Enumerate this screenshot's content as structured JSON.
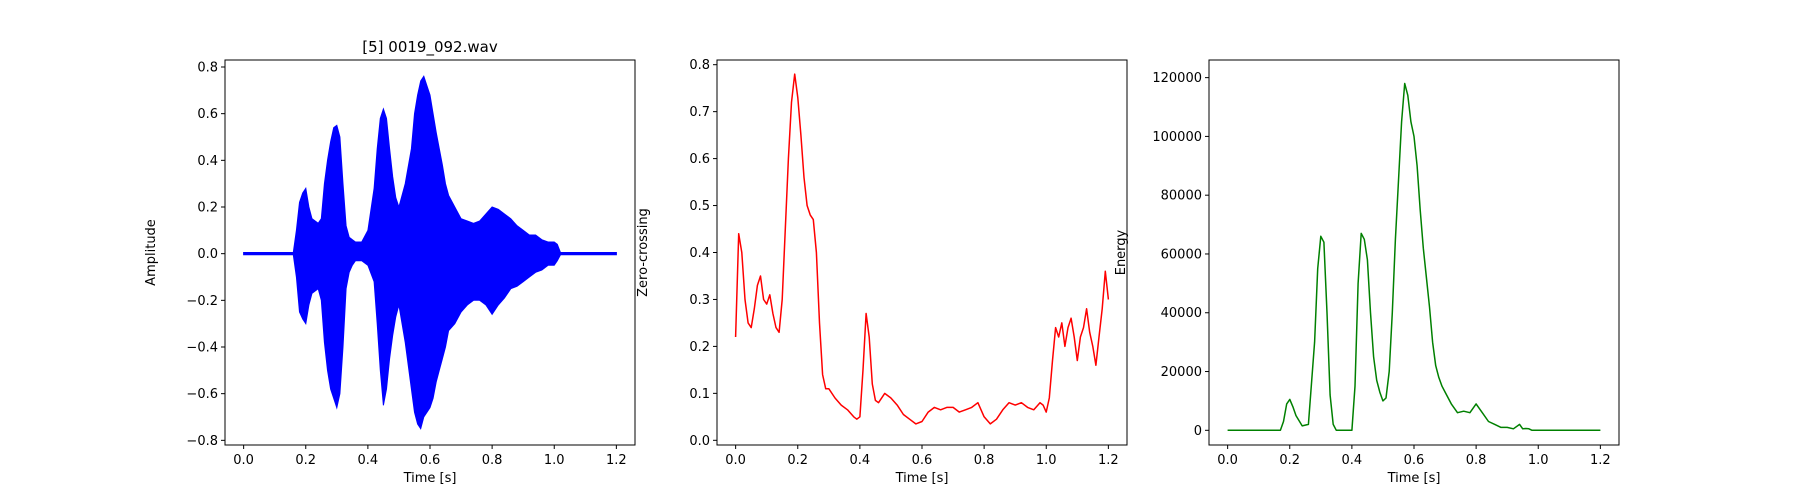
{
  "chart_data": [
    {
      "type": "line",
      "title": "[5] 0019_092.wav",
      "xlabel": "Time [s]",
      "ylabel": "Amplitude",
      "xlim": [
        -0.06,
        1.26
      ],
      "ylim": [
        -0.82,
        0.83
      ],
      "xticks": [
        0.0,
        0.2,
        0.4,
        0.6,
        0.8,
        1.0,
        1.2
      ],
      "xtick_labels": [
        "0.0",
        "0.2",
        "0.4",
        "0.6",
        "0.8",
        "1.0",
        "1.2"
      ],
      "yticks": [
        -0.8,
        -0.6,
        -0.4,
        -0.2,
        0.0,
        0.2,
        0.4,
        0.6,
        0.8
      ],
      "ytick_labels": [
        "−0.8",
        "−0.6",
        "−0.4",
        "−0.2",
        "0.0",
        "0.2",
        "0.4",
        "0.6",
        "0.8"
      ],
      "grid": false,
      "color": "#0000ff",
      "series": [
        {
          "style": "waveform-envelope",
          "x": [
            0.0,
            0.16,
            0.17,
            0.18,
            0.19,
            0.2,
            0.21,
            0.22,
            0.24,
            0.25,
            0.26,
            0.27,
            0.28,
            0.29,
            0.3,
            0.31,
            0.32,
            0.33,
            0.34,
            0.35,
            0.36,
            0.38,
            0.4,
            0.42,
            0.43,
            0.44,
            0.45,
            0.46,
            0.47,
            0.48,
            0.49,
            0.5,
            0.52,
            0.54,
            0.55,
            0.56,
            0.57,
            0.58,
            0.59,
            0.6,
            0.61,
            0.62,
            0.63,
            0.64,
            0.65,
            0.66,
            0.68,
            0.7,
            0.72,
            0.74,
            0.76,
            0.78,
            0.8,
            0.82,
            0.84,
            0.86,
            0.88,
            0.9,
            0.92,
            0.94,
            0.96,
            0.98,
            1.0,
            1.01,
            1.02,
            1.2
          ],
          "upper": [
            0.005,
            0.005,
            0.1,
            0.22,
            0.26,
            0.28,
            0.2,
            0.15,
            0.13,
            0.15,
            0.3,
            0.4,
            0.48,
            0.54,
            0.55,
            0.5,
            0.3,
            0.12,
            0.07,
            0.06,
            0.05,
            0.05,
            0.1,
            0.28,
            0.45,
            0.58,
            0.62,
            0.58,
            0.45,
            0.33,
            0.24,
            0.2,
            0.3,
            0.45,
            0.6,
            0.68,
            0.74,
            0.76,
            0.72,
            0.68,
            0.6,
            0.52,
            0.45,
            0.38,
            0.3,
            0.25,
            0.2,
            0.15,
            0.14,
            0.13,
            0.14,
            0.17,
            0.2,
            0.19,
            0.17,
            0.15,
            0.12,
            0.1,
            0.08,
            0.08,
            0.06,
            0.05,
            0.05,
            0.04,
            0.005,
            0.005
          ],
          "lower": [
            -0.005,
            -0.005,
            -0.1,
            -0.25,
            -0.28,
            -0.3,
            -0.22,
            -0.17,
            -0.15,
            -0.2,
            -0.38,
            -0.5,
            -0.58,
            -0.62,
            -0.66,
            -0.6,
            -0.4,
            -0.15,
            -0.08,
            -0.05,
            -0.03,
            -0.03,
            -0.05,
            -0.12,
            -0.3,
            -0.5,
            -0.65,
            -0.58,
            -0.45,
            -0.35,
            -0.27,
            -0.22,
            -0.38,
            -0.58,
            -0.68,
            -0.73,
            -0.75,
            -0.7,
            -0.68,
            -0.66,
            -0.62,
            -0.55,
            -0.5,
            -0.45,
            -0.4,
            -0.33,
            -0.3,
            -0.25,
            -0.22,
            -0.2,
            -0.2,
            -0.22,
            -0.26,
            -0.22,
            -0.19,
            -0.15,
            -0.14,
            -0.12,
            -0.1,
            -0.08,
            -0.07,
            -0.05,
            -0.05,
            -0.03,
            -0.005,
            -0.005
          ]
        }
      ]
    },
    {
      "type": "line",
      "title": "",
      "xlabel": "Time [s]",
      "ylabel": "Zero-crossing",
      "xlim": [
        -0.06,
        1.26
      ],
      "ylim": [
        -0.01,
        0.81
      ],
      "xticks": [
        0.0,
        0.2,
        0.4,
        0.6,
        0.8,
        1.0,
        1.2
      ],
      "xtick_labels": [
        "0.0",
        "0.2",
        "0.4",
        "0.6",
        "0.8",
        "1.0",
        "1.2"
      ],
      "yticks": [
        0.0,
        0.1,
        0.2,
        0.3,
        0.4,
        0.5,
        0.6,
        0.7,
        0.8
      ],
      "ytick_labels": [
        "0.0",
        "0.1",
        "0.2",
        "0.3",
        "0.4",
        "0.5",
        "0.6",
        "0.7",
        "0.8"
      ],
      "grid": false,
      "color": "#ff0000",
      "series": [
        {
          "x": [
            0.0,
            0.01,
            0.02,
            0.03,
            0.04,
            0.05,
            0.06,
            0.07,
            0.08,
            0.09,
            0.1,
            0.11,
            0.12,
            0.13,
            0.14,
            0.15,
            0.16,
            0.17,
            0.18,
            0.19,
            0.2,
            0.21,
            0.22,
            0.23,
            0.24,
            0.25,
            0.26,
            0.27,
            0.28,
            0.29,
            0.3,
            0.32,
            0.34,
            0.36,
            0.38,
            0.39,
            0.4,
            0.41,
            0.42,
            0.43,
            0.44,
            0.45,
            0.46,
            0.48,
            0.5,
            0.52,
            0.54,
            0.56,
            0.58,
            0.6,
            0.62,
            0.64,
            0.66,
            0.68,
            0.7,
            0.72,
            0.74,
            0.76,
            0.78,
            0.8,
            0.82,
            0.84,
            0.86,
            0.88,
            0.9,
            0.92,
            0.94,
            0.96,
            0.98,
            0.99,
            1.0,
            1.01,
            1.02,
            1.03,
            1.04,
            1.05,
            1.06,
            1.07,
            1.08,
            1.09,
            1.1,
            1.11,
            1.12,
            1.13,
            1.14,
            1.15,
            1.16,
            1.17,
            1.18,
            1.19,
            1.2
          ],
          "y": [
            0.22,
            0.44,
            0.4,
            0.3,
            0.25,
            0.24,
            0.28,
            0.33,
            0.35,
            0.3,
            0.29,
            0.31,
            0.27,
            0.24,
            0.23,
            0.3,
            0.45,
            0.6,
            0.72,
            0.78,
            0.73,
            0.65,
            0.56,
            0.5,
            0.48,
            0.47,
            0.4,
            0.25,
            0.14,
            0.11,
            0.11,
            0.09,
            0.075,
            0.065,
            0.05,
            0.045,
            0.05,
            0.15,
            0.27,
            0.22,
            0.12,
            0.085,
            0.08,
            0.1,
            0.09,
            0.075,
            0.055,
            0.045,
            0.035,
            0.04,
            0.06,
            0.07,
            0.065,
            0.07,
            0.07,
            0.06,
            0.065,
            0.07,
            0.08,
            0.05,
            0.035,
            0.045,
            0.065,
            0.08,
            0.075,
            0.08,
            0.07,
            0.065,
            0.08,
            0.075,
            0.06,
            0.09,
            0.17,
            0.24,
            0.22,
            0.25,
            0.2,
            0.24,
            0.26,
            0.22,
            0.17,
            0.22,
            0.24,
            0.28,
            0.23,
            0.2,
            0.16,
            0.22,
            0.28,
            0.36,
            0.3
          ]
        }
      ]
    },
    {
      "type": "line",
      "title": "",
      "xlabel": "Time [s]",
      "ylabel": "Energy",
      "xlim": [
        -0.06,
        1.26
      ],
      "ylim": [
        -5000,
        126000
      ],
      "xticks": [
        0.0,
        0.2,
        0.4,
        0.6,
        0.8,
        1.0,
        1.2
      ],
      "xtick_labels": [
        "0.0",
        "0.2",
        "0.4",
        "0.6",
        "0.8",
        "1.0",
        "1.2"
      ],
      "yticks": [
        0,
        20000,
        40000,
        60000,
        80000,
        100000,
        120000
      ],
      "ytick_labels": [
        "0",
        "20000",
        "40000",
        "60000",
        "80000",
        "100000",
        "120000"
      ],
      "grid": false,
      "color": "#008000",
      "series": [
        {
          "x": [
            0.0,
            0.17,
            0.18,
            0.19,
            0.2,
            0.21,
            0.22,
            0.24,
            0.26,
            0.28,
            0.29,
            0.3,
            0.31,
            0.32,
            0.33,
            0.34,
            0.35,
            0.36,
            0.38,
            0.4,
            0.41,
            0.42,
            0.43,
            0.44,
            0.45,
            0.46,
            0.47,
            0.48,
            0.49,
            0.5,
            0.51,
            0.52,
            0.53,
            0.54,
            0.55,
            0.56,
            0.57,
            0.58,
            0.59,
            0.6,
            0.61,
            0.62,
            0.63,
            0.64,
            0.65,
            0.66,
            0.67,
            0.68,
            0.69,
            0.7,
            0.72,
            0.74,
            0.76,
            0.78,
            0.8,
            0.82,
            0.84,
            0.86,
            0.88,
            0.9,
            0.92,
            0.94,
            0.95,
            0.96,
            0.97,
            0.98,
            1.0,
            1.2
          ],
          "y": [
            0,
            0,
            3000,
            9000,
            10500,
            8000,
            5000,
            1500,
            2000,
            30000,
            55000,
            66000,
            64000,
            40000,
            12000,
            2000,
            0,
            0,
            0,
            0,
            15000,
            50000,
            67000,
            65000,
            58000,
            40000,
            25000,
            17000,
            13000,
            10000,
            11000,
            20000,
            40000,
            65000,
            85000,
            105000,
            118000,
            114000,
            105000,
            100000,
            90000,
            75000,
            62000,
            52000,
            42000,
            30000,
            22000,
            18000,
            15000,
            13000,
            9000,
            6000,
            6500,
            6000,
            9000,
            6000,
            3000,
            2000,
            1000,
            1000,
            500,
            2000,
            500,
            600,
            500,
            0,
            0,
            0
          ]
        }
      ]
    }
  ]
}
